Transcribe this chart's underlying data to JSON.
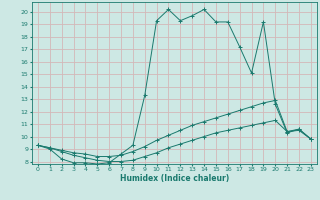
{
  "xlabel": "Humidex (Indice chaleur)",
  "bg_color": "#cde8e4",
  "grid_color": "#d4b8b8",
  "line_color": "#1a7a6e",
  "xlim": [
    -0.5,
    23.5
  ],
  "ylim": [
    7.8,
    20.8
  ],
  "yticks": [
    8,
    9,
    10,
    11,
    12,
    13,
    14,
    15,
    16,
    17,
    18,
    19,
    20
  ],
  "xticks": [
    0,
    1,
    2,
    3,
    4,
    5,
    6,
    7,
    8,
    9,
    10,
    11,
    12,
    13,
    14,
    15,
    16,
    17,
    18,
    19,
    20,
    21,
    22,
    23
  ],
  "series1": {
    "x": [
      0,
      1,
      2,
      3,
      4,
      5,
      6,
      7,
      8,
      9,
      10,
      11,
      12,
      13,
      14,
      15,
      16,
      17,
      18,
      19,
      20,
      21,
      22,
      23
    ],
    "y": [
      9.3,
      9.0,
      8.2,
      7.9,
      7.9,
      7.8,
      7.9,
      8.6,
      9.3,
      13.3,
      19.3,
      20.2,
      19.3,
      19.7,
      20.2,
      19.2,
      19.2,
      17.2,
      15.1,
      19.2,
      12.6,
      10.3,
      10.6,
      9.8
    ]
  },
  "series2": {
    "x": [
      0,
      1,
      2,
      3,
      4,
      5,
      6,
      7,
      8,
      9,
      10,
      11,
      12,
      13,
      14,
      15,
      16,
      17,
      18,
      19,
      20,
      21,
      22,
      23
    ],
    "y": [
      9.3,
      9.1,
      8.9,
      8.7,
      8.6,
      8.4,
      8.4,
      8.5,
      8.8,
      9.2,
      9.7,
      10.1,
      10.5,
      10.9,
      11.2,
      11.5,
      11.8,
      12.1,
      12.4,
      12.7,
      12.9,
      10.4,
      10.6,
      9.8
    ]
  },
  "series3": {
    "x": [
      0,
      1,
      2,
      3,
      4,
      5,
      6,
      7,
      8,
      9,
      10,
      11,
      12,
      13,
      14,
      15,
      16,
      17,
      18,
      19,
      20,
      21,
      22,
      23
    ],
    "y": [
      9.3,
      9.1,
      8.8,
      8.5,
      8.3,
      8.1,
      8.0,
      8.0,
      8.1,
      8.4,
      8.7,
      9.1,
      9.4,
      9.7,
      10.0,
      10.3,
      10.5,
      10.7,
      10.9,
      11.1,
      11.3,
      10.4,
      10.5,
      9.8
    ]
  }
}
